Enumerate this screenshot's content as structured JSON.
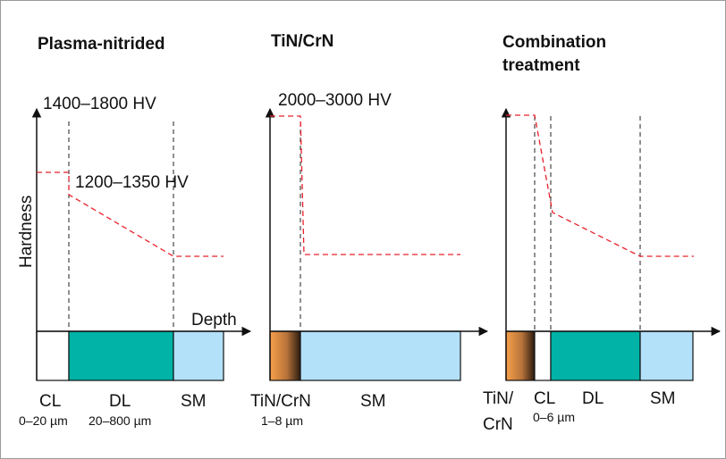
{
  "colors": {
    "dl": "#00b3a6",
    "sm": "#b3e1fa",
    "cl": "#ffffff",
    "hardness_line": "#e8202a",
    "coating_light": "#f7a04a",
    "coating_dark": "#2a1b10",
    "axis": "#111111",
    "dash": "#222222"
  },
  "y_axis_label": "Hardness",
  "x_axis_label": "Depth",
  "panels": [
    {
      "title_lines": [
        "Plasma-nitrided"
      ],
      "hardness_labels": [
        "1400–1800 HV",
        "1200–1350 HV"
      ],
      "layers": [
        {
          "code": "CL",
          "range": "0–20 µm",
          "fill": "cl"
        },
        {
          "code": "DL",
          "range": "20–800 µm",
          "fill": "dl"
        },
        {
          "code": "SM",
          "range": "",
          "fill": "sm"
        }
      ]
    },
    {
      "title_lines": [
        "TiN/CrN"
      ],
      "hardness_labels": [
        "2000–3000 HV"
      ],
      "layers": [
        {
          "code": "TiN/CrN",
          "range": "1–8 µm",
          "fill": "coating"
        },
        {
          "code": "SM",
          "range": "",
          "fill": "sm"
        }
      ]
    },
    {
      "title_lines": [
        "Combination",
        "treatment"
      ],
      "hardness_labels": [],
      "layers": [
        {
          "code_lines": [
            "TiN/",
            "CrN"
          ],
          "range": "",
          "fill": "coating"
        },
        {
          "code": "CL",
          "range": "0–6 µm",
          "fill": "cl"
        },
        {
          "code": "DL",
          "range": "",
          "fill": "dl"
        },
        {
          "code": "SM",
          "range": "",
          "fill": "sm"
        }
      ]
    }
  ]
}
